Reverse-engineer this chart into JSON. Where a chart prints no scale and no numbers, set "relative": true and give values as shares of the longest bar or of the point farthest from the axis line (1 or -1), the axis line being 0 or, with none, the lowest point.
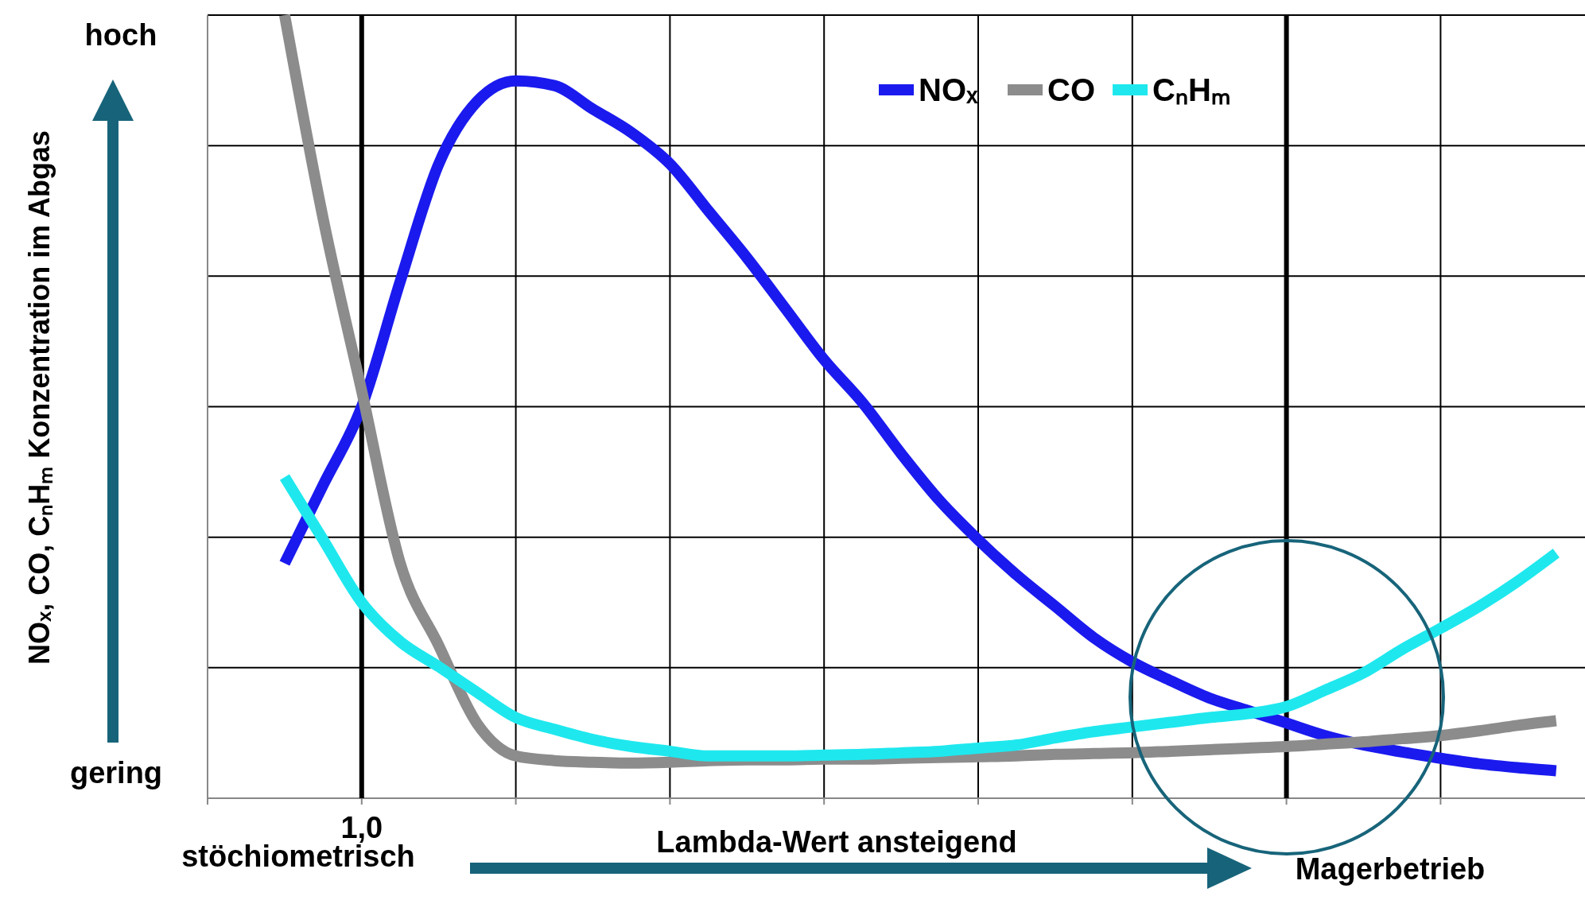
{
  "chart_data": {
    "type": "line",
    "relative": true,
    "xlabel": "Lambda-Wert ansteigend",
    "categories": [
      null,
      null,
      null,
      null,
      null,
      null,
      null,
      null,
      null,
      null,
      null,
      null,
      null,
      null,
      null,
      null,
      null,
      null,
      null,
      null,
      null,
      null,
      null,
      null,
      null,
      null,
      null,
      null,
      null,
      null,
      null,
      null,
      null,
      null,
      null,
      null
    ],
    "grid": true,
    "legend": "top",
    "marker": "none",
    "line_style": "solid",
    "annotations": [
      "NOₓ, CO, CₙHₘ Konzentration im Abgas",
      "hoch",
      "gering",
      "1,0",
      "stöchiometrisch",
      "Magerbetrieb"
    ],
    "series": [
      {
        "name": "NOₓ",
        "color": "#1a1aee",
        "values": [
          null,
          null,
          0.3,
          0.4,
          0.5,
          0.66,
          0.81,
          0.89,
          0.916,
          0.91,
          0.88,
          0.85,
          0.81,
          0.75,
          0.69,
          0.625,
          0.56,
          0.505,
          0.44,
          0.38,
          0.33,
          0.285,
          0.245,
          0.205,
          0.174,
          0.15,
          0.128,
          0.112,
          0.096,
          0.08,
          0.068,
          0.059,
          0.051,
          0.044,
          0.039,
          0.035
        ]
      },
      {
        "name": "CO",
        "color": "#8c8c8c",
        "values": [
          null,
          null,
          1,
          0.74,
          0.52,
          0.3,
          0.195,
          0.095,
          0.054,
          0.048,
          0.046,
          0.045,
          0.046,
          0.048,
          0.049,
          0.049,
          0.05,
          0.05,
          0.051,
          0.052,
          0.053,
          0.054,
          0.056,
          0.057,
          0.058,
          0.06,
          0.062,
          0.064,
          0.066,
          0.069,
          0.072,
          0.076,
          0.08,
          0.086,
          0.093,
          0.099
        ]
      },
      {
        "name": "CₙHₘ",
        "color": "#1ee8ee",
        "values": [
          null,
          null,
          0.41,
          0.33,
          0.25,
          0.2,
          0.168,
          0.135,
          0.103,
          0.088,
          0.075,
          0.066,
          0.06,
          0.054,
          0.054,
          0.054,
          0.055,
          0.056,
          0.058,
          0.06,
          0.064,
          0.068,
          0.077,
          0.085,
          0.091,
          0.097,
          0.103,
          0.108,
          0.117,
          0.138,
          0.16,
          0.19,
          0.217,
          0.245,
          0.277,
          0.313
        ]
      }
    ]
  }
}
